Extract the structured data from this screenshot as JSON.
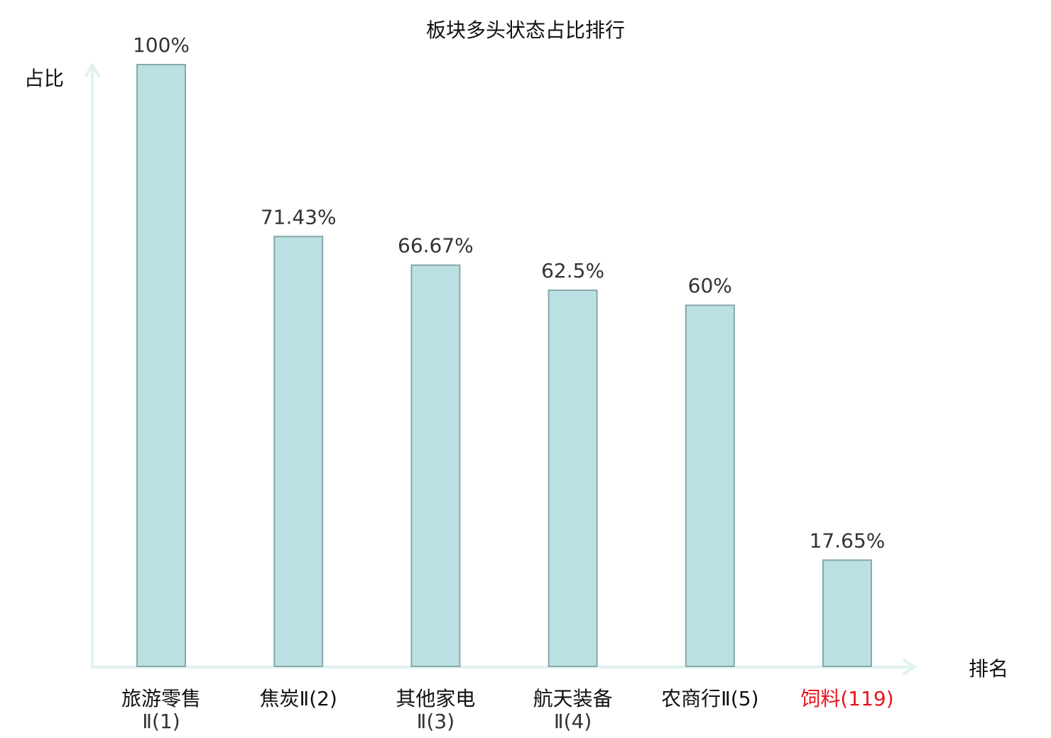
{
  "chart_data": {
    "type": "bar",
    "title": "板块多头状态占比排行",
    "xlabel": "排名",
    "ylabel": "占比",
    "ylim": [
      0,
      100
    ],
    "grid": false,
    "categories": [
      {
        "line1": "旅游零售",
        "line2": "Ⅱ(1)",
        "highlight": false
      },
      {
        "line1": "焦炭Ⅱ(2)",
        "line2": "",
        "highlight": false
      },
      {
        "line1": "其他家电",
        "line2": "Ⅱ(3)",
        "highlight": false
      },
      {
        "line1": "航天装备",
        "line2": "Ⅱ(4)",
        "highlight": false
      },
      {
        "line1": "农商行Ⅱ(5)",
        "line2": "",
        "highlight": false
      },
      {
        "line1": "饲料(119)",
        "line2": "",
        "highlight": true
      }
    ],
    "values": [
      100,
      71.43,
      66.67,
      62.5,
      60,
      17.65
    ],
    "value_labels": [
      "100%",
      "71.43%",
      "66.67%",
      "62.5%",
      "60%",
      "17.65%"
    ],
    "colors": {
      "bar_fill": "#bbe0e3",
      "bar_stroke": "#86a8aa",
      "axis": "#dff2ef",
      "highlight": "#e8141b",
      "text": "#333333"
    }
  }
}
